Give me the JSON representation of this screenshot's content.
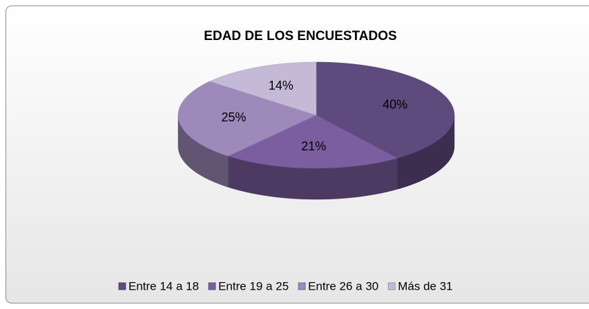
{
  "chart_data": {
    "type": "pie",
    "title": "EDAD DE LOS ENCUESTADOS",
    "categories": [
      "Entre 14 a 18",
      "Entre 19 a 25",
      "Entre  26 a 30",
      "Más de 31"
    ],
    "values": [
      40,
      21,
      25,
      14
    ],
    "value_labels": [
      "40%",
      "21%",
      "25%",
      "14%"
    ],
    "colors": [
      "#5f4a7e",
      "#7a5ea0",
      "#9d89ba",
      "#c5b9d8"
    ],
    "legend": "bottom"
  }
}
